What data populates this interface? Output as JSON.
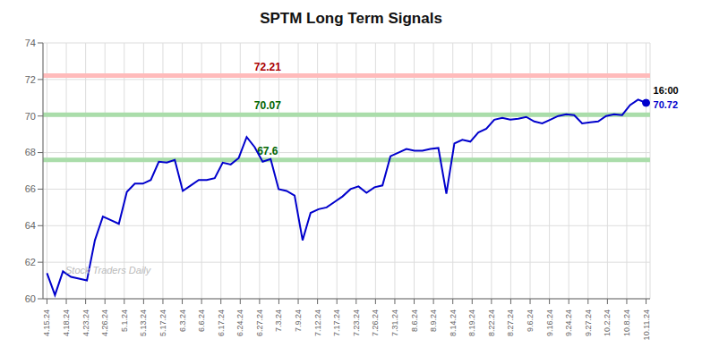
{
  "chart_data": {
    "type": "line",
    "title": "SPTM Long Term Signals",
    "grid": true,
    "x": [
      0,
      1,
      2,
      3,
      4,
      5,
      6,
      7,
      8,
      9,
      10,
      11,
      12,
      13,
      14,
      15,
      16,
      17,
      18,
      19,
      20,
      21,
      22,
      23,
      24,
      25,
      26,
      27,
      28,
      29,
      30,
      31,
      32,
      33,
      34,
      35,
      36,
      37,
      38,
      39,
      40,
      41,
      42,
      43,
      44,
      45,
      46,
      47,
      48,
      49,
      50,
      51,
      52,
      53,
      54,
      55,
      56,
      57,
      58,
      59,
      60,
      61,
      62,
      63,
      64,
      65,
      66,
      67,
      68,
      69,
      70,
      71,
      72,
      73,
      74,
      75
    ],
    "series": [
      {
        "name": "SPTM",
        "color": "#0000cc",
        "values": [
          61.4,
          60.2,
          61.5,
          61.2,
          61.1,
          61.0,
          63.2,
          64.5,
          64.3,
          64.1,
          65.85,
          66.3,
          66.3,
          66.5,
          67.5,
          67.45,
          67.6,
          65.9,
          66.2,
          66.5,
          66.5,
          66.6,
          67.45,
          67.35,
          67.7,
          68.85,
          68.3,
          67.5,
          67.65,
          66.0,
          65.9,
          65.65,
          63.2,
          64.7,
          64.9,
          65.0,
          65.3,
          65.6,
          66.0,
          66.15,
          65.8,
          66.1,
          66.2,
          67.8,
          68.0,
          68.2,
          68.1,
          68.1,
          68.2,
          68.25,
          65.75,
          68.5,
          68.7,
          68.6,
          69.1,
          69.3,
          69.8,
          69.9,
          69.8,
          69.85,
          69.95,
          69.7,
          69.6,
          69.8,
          70.0,
          70.1,
          70.05,
          69.6,
          69.65,
          69.7,
          70.0,
          70.1,
          70.05,
          70.6,
          70.9,
          70.72
        ]
      }
    ],
    "xlim": [
      -0.5,
      75.5
    ],
    "xticks": [
      {
        "value": 0,
        "label": "4.15.24"
      },
      {
        "value": 2.419355,
        "label": "4.18.24"
      },
      {
        "value": 4.83871,
        "label": "4.23.24"
      },
      {
        "value": 7.258065,
        "label": "4.26.24"
      },
      {
        "value": 9.677419,
        "label": "5.1.24"
      },
      {
        "value": 12.096774,
        "label": "5.13.24"
      },
      {
        "value": 14.516129,
        "label": "5.17.24"
      },
      {
        "value": 16.935484,
        "label": "6.3.24"
      },
      {
        "value": 19.354839,
        "label": "6.6.24"
      },
      {
        "value": 21.774194,
        "label": "6.17.24"
      },
      {
        "value": 24.193548,
        "label": "6.24.24"
      },
      {
        "value": 26.612903,
        "label": "6.27.24"
      },
      {
        "value": 29.032258,
        "label": "7.3.24"
      },
      {
        "value": 31.451613,
        "label": "7.9.24"
      },
      {
        "value": 33.870968,
        "label": "7.12.24"
      },
      {
        "value": 36.290323,
        "label": "7.17.24"
      },
      {
        "value": 38.709677,
        "label": "7.23.24"
      },
      {
        "value": 41.129032,
        "label": "7.26.24"
      },
      {
        "value": 43.548387,
        "label": "7.31.24"
      },
      {
        "value": 45.967742,
        "label": "8.6.24"
      },
      {
        "value": 48.387097,
        "label": "8.9.24"
      },
      {
        "value": 50.806452,
        "label": "8.14.24"
      },
      {
        "value": 53.225806,
        "label": "8.19.24"
      },
      {
        "value": 55.645161,
        "label": "8.22.24"
      },
      {
        "value": 58.064516,
        "label": "8.27.24"
      },
      {
        "value": 60.483871,
        "label": "9.6.24"
      },
      {
        "value": 62.903226,
        "label": "9.16.24"
      },
      {
        "value": 65.322581,
        "label": "9.24.24"
      },
      {
        "value": 67.741935,
        "label": "9.27.24"
      },
      {
        "value": 70.16129,
        "label": "10.2.24"
      },
      {
        "value": 72.580645,
        "label": "10.8.24"
      },
      {
        "value": 75,
        "label": "10.11.24"
      }
    ],
    "ylim": [
      60,
      74
    ],
    "yticks": [
      60,
      62,
      64,
      66,
      68,
      70,
      72,
      74
    ],
    "reference_lines": [
      {
        "value": 72.21,
        "label": "72.21",
        "color": "#ffbbbb",
        "label_color": "#aa0000"
      },
      {
        "value": 70.07,
        "label": "70.07",
        "color": "#aaddaa",
        "label_color": "#006600"
      },
      {
        "value": 67.6,
        "label": "67.6",
        "color": "#aaddaa",
        "label_color": "#006600"
      }
    ],
    "annotations": [
      {
        "text": "16:00",
        "color": "#000000"
      },
      {
        "text": "70.72",
        "color": "#0000cc"
      }
    ],
    "watermark": {
      "text": "Stock Traders Daily",
      "color": "#bbbbbb"
    }
  }
}
